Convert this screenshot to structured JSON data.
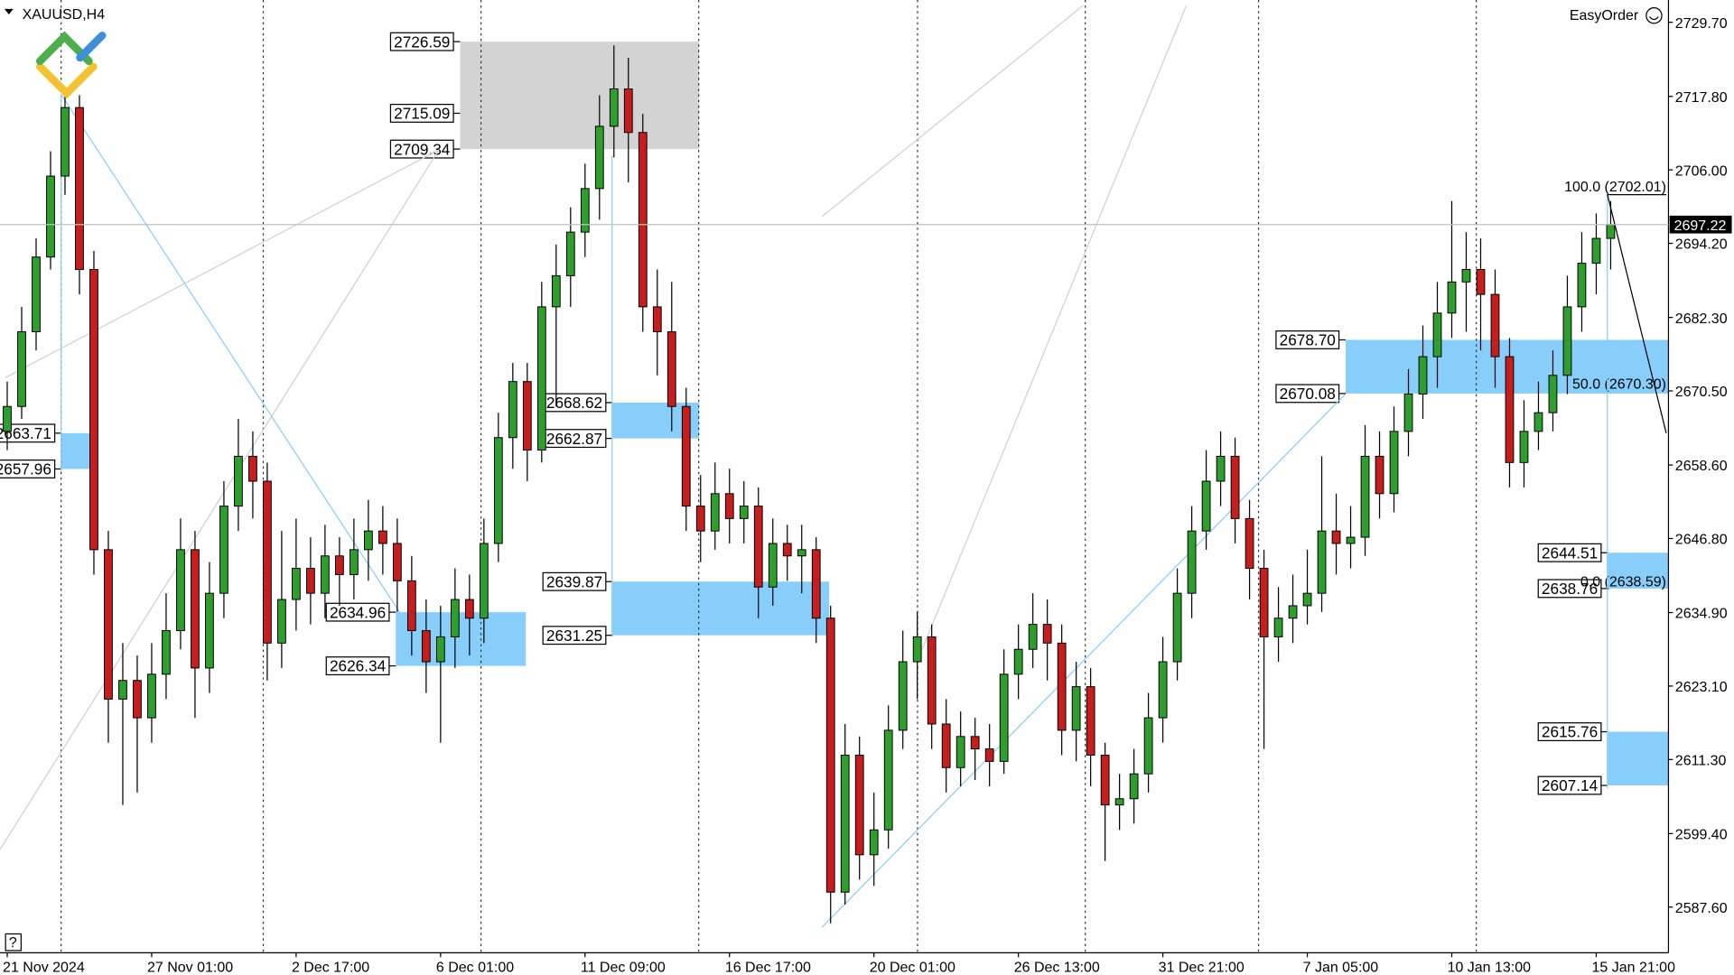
{
  "chart_data": {
    "type": "candlestick",
    "symbol": "XAUUSD,H4",
    "panel": "EasyOrder",
    "x": [
      0,
      2,
      4,
      6,
      8,
      10,
      12,
      14,
      16,
      18,
      20,
      22,
      24,
      26,
      28,
      30,
      32,
      34,
      36,
      38,
      40,
      42,
      44,
      46,
      48,
      50,
      52,
      54,
      56,
      58,
      60,
      62,
      64,
      66,
      68,
      70,
      72,
      74,
      76,
      78,
      80,
      82,
      84,
      86,
      88,
      90,
      92,
      94,
      96,
      98,
      100,
      102,
      104,
      106,
      108,
      110,
      112,
      114,
      116,
      118,
      120,
      122,
      124,
      126,
      128,
      130,
      132,
      134,
      136,
      138,
      140,
      142,
      144,
      146,
      148,
      150,
      152,
      154,
      156,
      158,
      160,
      162,
      164,
      166,
      168,
      170,
      172,
      174,
      176,
      178,
      180,
      182,
      184,
      186,
      188,
      190,
      192,
      194,
      196,
      198,
      200,
      202,
      204,
      206,
      208,
      210,
      212,
      214,
      216,
      218,
      220,
      222
    ],
    "open": [
      2664,
      2668,
      2680,
      2692,
      2705,
      2716,
      2690,
      2645,
      2621,
      2624,
      2618,
      2625,
      2632,
      2645,
      2626,
      2638,
      2652,
      2660,
      2656,
      2630,
      2637,
      2642,
      2638,
      2644,
      2641,
      2645,
      2648,
      2646,
      2640,
      2632,
      2627,
      2631,
      2637,
      2634,
      2646,
      2663,
      2672,
      2661,
      2684,
      2689,
      2696,
      2703,
      2713,
      2719,
      2712,
      2684,
      2680,
      2668,
      2652,
      2648,
      2654,
      2650,
      2652,
      2639,
      2646,
      2644,
      2645,
      2634,
      2590,
      2612,
      2596,
      2600,
      2616,
      2627,
      2631,
      2617,
      2610,
      2615,
      2613,
      2611,
      2625,
      2629,
      2633,
      2630,
      2616,
      2623,
      2612,
      2604,
      2605,
      2609,
      2618,
      2627,
      2638,
      2648,
      2656,
      2660,
      2650,
      2642,
      2631,
      2634,
      2636,
      2638,
      2648,
      2646,
      2647,
      2660,
      2654,
      2664,
      2670,
      2676,
      2683,
      2688,
      2690,
      2686,
      2676,
      2659,
      2664,
      2667,
      2673,
      2684,
      2691,
      2695
    ],
    "high": [
      2672,
      2684,
      2695,
      2709,
      2719,
      2718,
      2693,
      2648,
      2630,
      2628,
      2630,
      2638,
      2650,
      2648,
      2643,
      2656,
      2666,
      2664,
      2659,
      2648,
      2650,
      2647,
      2649,
      2647,
      2650,
      2653,
      2652,
      2650,
      2644,
      2637,
      2636,
      2642,
      2641,
      2650,
      2667,
      2675,
      2675,
      2688,
      2694,
      2700,
      2707,
      2718,
      2726,
      2724,
      2715,
      2690,
      2688,
      2671,
      2657,
      2659,
      2658,
      2656,
      2655,
      2650,
      2649,
      2649,
      2647,
      2636,
      2617,
      2615,
      2606,
      2620,
      2632,
      2635,
      2633,
      2621,
      2619,
      2618,
      2617,
      2629,
      2633,
      2638,
      2637,
      2633,
      2627,
      2626,
      2614,
      2609,
      2613,
      2622,
      2631,
      2642,
      2652,
      2661,
      2664,
      2663,
      2653,
      2645,
      2639,
      2641,
      2645,
      2660,
      2654,
      2652,
      2665,
      2664,
      2668,
      2674,
      2681,
      2688,
      2701,
      2696,
      2695,
      2690,
      2679,
      2669,
      2672,
      2677,
      2689,
      2696,
      2699,
      2701
    ],
    "low": [
      2661,
      2666,
      2677,
      2690,
      2702,
      2686,
      2641,
      2614,
      2604,
      2606,
      2614,
      2621,
      2629,
      2618,
      2622,
      2634,
      2648,
      2650,
      2624,
      2626,
      2632,
      2633,
      2634,
      2636,
      2637,
      2640,
      2641,
      2635,
      2628,
      2622,
      2614,
      2626,
      2628,
      2630,
      2643,
      2658,
      2656,
      2659,
      2668,
      2684,
      2692,
      2698,
      2708,
      2704,
      2680,
      2673,
      2664,
      2648,
      2643,
      2645,
      2646,
      2646,
      2634,
      2636,
      2640,
      2638,
      2630,
      2585,
      2588,
      2592,
      2591,
      2597,
      2613,
      2621,
      2613,
      2606,
      2607,
      2608,
      2607,
      2609,
      2621,
      2626,
      2624,
      2612,
      2611,
      2607,
      2595,
      2600,
      2601,
      2606,
      2614,
      2624,
      2634,
      2645,
      2652,
      2646,
      2637,
      2613,
      2627,
      2630,
      2633,
      2635,
      2641,
      2642,
      2644,
      2650,
      2651,
      2660,
      2666,
      2671,
      2679,
      2680,
      2677,
      2671,
      2655,
      2655,
      2661,
      2664,
      2670,
      2680,
      2686,
      2690
    ],
    "close": [
      2668,
      2680,
      2692,
      2705,
      2716,
      2690,
      2645,
      2621,
      2624,
      2618,
      2625,
      2632,
      2645,
      2626,
      2638,
      2652,
      2660,
      2656,
      2630,
      2637,
      2642,
      2638,
      2644,
      2641,
      2645,
      2648,
      2646,
      2640,
      2632,
      2627,
      2631,
      2637,
      2634,
      2646,
      2663,
      2672,
      2661,
      2684,
      2689,
      2696,
      2703,
      2713,
      2719,
      2712,
      2684,
      2680,
      2668,
      2652,
      2648,
      2654,
      2650,
      2652,
      2639,
      2646,
      2644,
      2645,
      2634,
      2590,
      2612,
      2596,
      2600,
      2616,
      2627,
      2631,
      2617,
      2610,
      2615,
      2613,
      2611,
      2625,
      2629,
      2633,
      2630,
      2616,
      2623,
      2612,
      2604,
      2605,
      2609,
      2618,
      2627,
      2638,
      2648,
      2656,
      2660,
      2650,
      2642,
      2631,
      2634,
      2636,
      2638,
      2648,
      2646,
      2647,
      2660,
      2654,
      2664,
      2670,
      2676,
      2683,
      2688,
      2690,
      2686,
      2676,
      2659,
      2664,
      2667,
      2673,
      2684,
      2691,
      2695,
      2697.22
    ],
    "up_color": "#2e9e2e",
    "down_color": "#c41e1e",
    "xlim": [
      -1,
      230
    ],
    "xticks": [
      {
        "value": 0,
        "label": "21 Nov 2024"
      },
      {
        "value": 20,
        "label": "27 Nov 01:00"
      },
      {
        "value": 40,
        "label": "2 Dec 17:00"
      },
      {
        "value": 60,
        "label": "6 Dec 01:00"
      },
      {
        "value": 80,
        "label": "11 Dec 09:00"
      },
      {
        "value": 100,
        "label": "16 Dec 17:00"
      },
      {
        "value": 120,
        "label": "20 Dec 01:00"
      },
      {
        "value": 140,
        "label": "26 Dec 13:00"
      },
      {
        "value": 160,
        "label": "31 Dec 21:00"
      },
      {
        "value": 180,
        "label": "7 Jan 05:00"
      },
      {
        "value": 200,
        "label": "10 Jan 13:00"
      },
      {
        "value": 220,
        "label": "15 Jan 21:00"
      }
    ],
    "ylim": [
      2580.26,
      2733.28
    ],
    "yticks": [
      {
        "value": 2729.7,
        "label": "2729.70"
      },
      {
        "value": 2717.8,
        "label": "2717.80"
      },
      {
        "value": 2706,
        "label": "2706.00"
      },
      {
        "value": 2694.2,
        "label": "2694.20"
      },
      {
        "value": 2682.3,
        "label": "2682.30"
      },
      {
        "value": 2670.5,
        "label": "2670.50"
      },
      {
        "value": 2658.6,
        "label": "2658.60"
      },
      {
        "value": 2646.8,
        "label": "2646.80"
      },
      {
        "value": 2634.9,
        "label": "2634.90"
      },
      {
        "value": 2623.1,
        "label": "2623.10"
      },
      {
        "value": 2611.3,
        "label": "2611.30"
      },
      {
        "value": 2599.4,
        "label": "2599.40"
      },
      {
        "value": 2587.6,
        "label": "2587.60"
      }
    ],
    "current_price": 2697.22,
    "zones": [
      {
        "x": [
          7.5,
          12.4
        ],
        "color": "#87cefa",
        "levels": [
          {
            "value": 2663.71,
            "label": "2663.71"
          },
          {
            "value": 2657.96,
            "label": "2657.96"
          }
        ]
      },
      {
        "x": [
          62.7,
          95.8
        ],
        "color": "#d3d3d3",
        "levels": [
          {
            "value": 2726.59,
            "label": "2726.59"
          },
          {
            "value": 2715.09,
            "label": "2715.09"
          },
          {
            "value": 2709.34,
            "label": "2709.34"
          }
        ]
      },
      {
        "x": [
          53.8,
          71.8
        ],
        "color": "#87cefa",
        "levels": [
          {
            "value": 2634.96,
            "label": "2634.96"
          },
          {
            "value": 2626.34,
            "label": "2626.34"
          }
        ]
      },
      {
        "x": [
          83.8,
          95.8
        ],
        "color": "#87cefa",
        "levels": [
          {
            "value": 2668.62,
            "label": "2668.62"
          },
          {
            "value": 2662.87,
            "label": "2662.87"
          }
        ]
      },
      {
        "x": [
          83.8,
          113.8
        ],
        "color": "#87cefa",
        "levels": [
          {
            "value": 2639.87,
            "label": "2639.87"
          },
          {
            "value": 2631.25,
            "label": "2631.25"
          }
        ]
      },
      {
        "x": [
          185.3,
          230
        ],
        "color": "#87cefa",
        "levels": [
          {
            "value": 2678.7,
            "label": "2678.70"
          },
          {
            "value": 2670.08,
            "label": "2670.08"
          }
        ]
      },
      {
        "x": [
          221.6,
          230
        ],
        "color": "#87cefa",
        "levels": [
          {
            "value": 2644.51,
            "label": "2644.51"
          },
          {
            "value": 2638.76,
            "label": "2638.76"
          }
        ]
      },
      {
        "x": [
          221.6,
          230
        ],
        "color": "#87cefa",
        "levels": [
          {
            "value": 2615.76,
            "label": "2615.76"
          },
          {
            "value": 2607.14,
            "label": "2607.14"
          }
        ]
      }
    ],
    "fib_levels": [
      {
        "value": 2702.01,
        "label": "100.0 (2702.01)"
      },
      {
        "value": 2670.3,
        "label": "50.0 (2670.30)"
      },
      {
        "value": 2638.59,
        "label": "0.0 (2638.59)"
      }
    ]
  }
}
